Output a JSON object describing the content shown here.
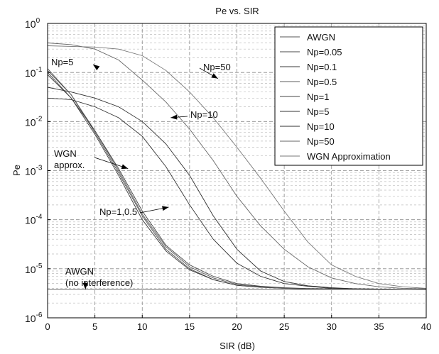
{
  "chart_data": {
    "type": "line",
    "title": "Pe vs. SIR",
    "xlabel": "SIR (dB)",
    "ylabel": "Pe",
    "xlim": [
      0,
      40
    ],
    "ylim": [
      1e-06,
      1
    ],
    "yscale": "log",
    "grid": true,
    "legend_position": "top-right",
    "x_ticks": [
      "0",
      "5",
      "10",
      "15",
      "20",
      "25",
      "30",
      "35",
      "40"
    ],
    "y_ticks": [
      {
        "base": "10",
        "exp": "0"
      },
      {
        "base": "10",
        "exp": "-1"
      },
      {
        "base": "10",
        "exp": "-2"
      },
      {
        "base": "10",
        "exp": "-3"
      },
      {
        "base": "10",
        "exp": "-4"
      },
      {
        "base": "10",
        "exp": "-5"
      },
      {
        "base": "10",
        "exp": "-6"
      }
    ],
    "x": [
      0,
      2.5,
      5,
      7.5,
      10,
      12.5,
      15,
      17.5,
      20,
      22.5,
      25,
      27.5,
      30,
      32.5,
      35,
      37.5,
      40
    ],
    "series": [
      {
        "name": "AWGN",
        "values": [
          3.8e-06,
          3.8e-06,
          3.8e-06,
          3.8e-06,
          3.8e-06,
          3.8e-06,
          3.8e-06,
          3.8e-06,
          3.8e-06,
          3.8e-06,
          3.8e-06,
          3.8e-06,
          3.8e-06,
          3.8e-06,
          3.8e-06,
          3.8e-06,
          3.8e-06
        ]
      },
      {
        "name": "Np=0.05",
        "values": [
          0.11,
          0.035,
          0.006,
          0.0009,
          0.00012,
          2.5e-05,
          1e-05,
          6e-06,
          4.6e-06,
          4.2e-06,
          4e-06,
          3.9e-06,
          3.9e-06,
          3.85e-06,
          3.8e-06,
          3.8e-06,
          3.8e-06
        ]
      },
      {
        "name": "Np=0.1",
        "values": [
          0.1,
          0.03,
          0.0055,
          0.0008,
          0.0001,
          2.3e-05,
          9.5e-06,
          6e-06,
          4.6e-06,
          4.2e-06,
          4e-06,
          3.9e-06,
          3.9e-06,
          3.85e-06,
          3.8e-06,
          3.8e-06,
          3.8e-06
        ]
      },
      {
        "name": "Np=0.5",
        "values": [
          0.12,
          0.035,
          0.0065,
          0.001,
          0.00013,
          2.8e-05,
          1.1e-05,
          6.5e-06,
          4.8e-06,
          4.3e-06,
          4e-06,
          3.9e-06,
          3.9e-06,
          3.85e-06,
          3.8e-06,
          3.8e-06,
          3.8e-06
        ]
      },
      {
        "name": "Np=1",
        "values": [
          0.09,
          0.03,
          0.0065,
          0.0011,
          0.00015,
          3e-05,
          1.2e-05,
          7e-06,
          5e-06,
          4.4e-06,
          4.1e-06,
          3.95e-06,
          3.9e-06,
          3.85e-06,
          3.8e-06,
          3.8e-06,
          3.8e-06
        ]
      },
      {
        "name": "Np=5",
        "values": [
          0.03,
          0.028,
          0.02,
          0.012,
          0.005,
          0.0012,
          0.0002,
          4e-05,
          1.3e-05,
          7e-06,
          5e-06,
          4.4e-06,
          4e-06,
          3.9e-06,
          3.85e-06,
          3.8e-06,
          3.8e-06
        ]
      },
      {
        "name": "Np=10",
        "values": [
          0.05,
          0.04,
          0.03,
          0.02,
          0.01,
          0.0035,
          0.0008,
          0.00012,
          2.5e-05,
          9e-06,
          5.5e-06,
          4.5e-06,
          4.1e-06,
          3.9e-06,
          3.85e-06,
          3.8e-06,
          3.8e-06
        ]
      },
      {
        "name": "Np=50",
        "values": [
          0.4,
          0.37,
          0.3,
          0.18,
          0.07,
          0.025,
          0.007,
          0.0016,
          0.0003,
          7.5e-05,
          2.5e-05,
          1.1e-05,
          6.5e-06,
          5e-06,
          4.3e-06,
          4e-06,
          3.9e-06
        ]
      },
      {
        "name": "WGN Approximation",
        "values": [
          0.35,
          0.34,
          0.33,
          0.3,
          0.22,
          0.11,
          0.04,
          0.012,
          0.003,
          0.0007,
          0.00015,
          3.5e-05,
          1.2e-05,
          7e-06,
          5e-06,
          4.3e-06,
          4e-06
        ]
      }
    ],
    "annotations": [
      {
        "text": "Np=5",
        "x": 4.8,
        "y": 0.145
      },
      {
        "text": "Np=50",
        "x": 18,
        "y": 0.075
      },
      {
        "text": "Np=10",
        "x": 13,
        "y": 0.012
      },
      {
        "text": "WGN",
        "text2": "approx.",
        "x": 8.5,
        "y": 0.0011
      },
      {
        "text": "Np=1,0.5",
        "x": 12.8,
        "y": 0.00018
      },
      {
        "text": "AWGN",
        "text2": "(no interference)",
        "x": 4,
        "y": 3.8e-06
      }
    ]
  }
}
